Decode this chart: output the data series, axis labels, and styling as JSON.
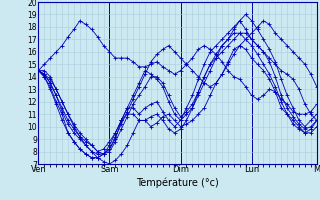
{
  "xlabel": "Température (°c)",
  "background_color": "#cce8f0",
  "grid_color": "#aaccdd",
  "line_color": "#0000bb",
  "marker": "+",
  "ylim": [
    7,
    20
  ],
  "yticks": [
    7,
    8,
    9,
    10,
    11,
    12,
    13,
    14,
    15,
    16,
    17,
    18,
    19,
    20
  ],
  "xtick_labels": [
    "Ven",
    "Sam",
    "Dim",
    "Lun",
    "M"
  ],
  "xtick_positions": [
    0,
    12,
    24,
    36,
    47
  ],
  "n_points": 48,
  "series": [
    [
      14.5,
      14.2,
      13.8,
      13.0,
      12.0,
      11.0,
      10.0,
      9.2,
      8.5,
      8.0,
      7.5,
      7.2,
      7.0,
      7.3,
      7.8,
      8.5,
      9.5,
      10.5,
      10.5,
      10.0,
      10.3,
      10.8,
      11.0,
      10.5,
      10.0,
      10.2,
      10.5,
      11.0,
      11.5,
      12.5,
      13.5,
      14.2,
      15.0,
      15.8,
      16.5,
      16.2,
      15.5,
      15.0,
      14.5,
      13.8,
      12.8,
      11.5,
      11.0,
      10.5,
      10.0,
      9.5,
      9.5,
      10.0
    ],
    [
      14.5,
      14.0,
      13.2,
      12.0,
      11.0,
      9.5,
      8.8,
      8.2,
      7.8,
      7.5,
      7.5,
      7.8,
      8.2,
      9.0,
      10.5,
      11.0,
      11.0,
      10.5,
      10.5,
      10.8,
      11.0,
      10.5,
      9.8,
      9.5,
      9.8,
      10.5,
      11.5,
      12.8,
      14.0,
      15.0,
      15.5,
      16.0,
      16.5,
      17.0,
      17.5,
      17.0,
      16.5,
      15.8,
      15.0,
      14.2,
      13.2,
      12.0,
      11.0,
      10.2,
      9.8,
      9.5,
      9.8,
      10.5
    ],
    [
      14.5,
      14.0,
      13.0,
      11.8,
      10.5,
      9.5,
      8.8,
      8.2,
      7.8,
      7.5,
      7.5,
      7.8,
      8.5,
      9.5,
      10.5,
      11.5,
      11.5,
      11.0,
      11.5,
      11.8,
      12.0,
      11.2,
      10.5,
      10.0,
      10.5,
      11.5,
      12.5,
      13.8,
      15.0,
      16.0,
      16.5,
      17.0,
      17.5,
      18.0,
      18.5,
      17.8,
      17.0,
      16.5,
      16.0,
      15.2,
      14.0,
      12.5,
      11.5,
      10.8,
      10.2,
      9.8,
      10.0,
      10.5
    ],
    [
      14.5,
      14.5,
      14.0,
      13.0,
      12.0,
      11.0,
      10.2,
      9.5,
      9.0,
      8.5,
      8.0,
      8.2,
      8.8,
      9.5,
      10.5,
      11.5,
      12.5,
      13.5,
      14.5,
      14.2,
      13.8,
      13.2,
      12.0,
      11.0,
      10.5,
      11.0,
      11.5,
      12.5,
      13.5,
      14.5,
      15.5,
      16.5,
      17.0,
      17.8,
      18.5,
      19.0,
      18.5,
      17.8,
      17.0,
      16.2,
      15.2,
      13.8,
      12.5,
      11.5,
      10.5,
      10.0,
      10.5,
      11.0
    ],
    [
      14.5,
      15.0,
      15.5,
      16.0,
      16.5,
      17.2,
      17.8,
      18.5,
      18.2,
      17.8,
      17.2,
      16.5,
      16.0,
      15.5,
      15.5,
      15.5,
      15.2,
      14.8,
      14.8,
      15.0,
      15.2,
      14.8,
      14.5,
      14.2,
      14.5,
      15.0,
      15.5,
      16.2,
      16.5,
      16.2,
      15.8,
      15.2,
      14.5,
      14.0,
      13.8,
      13.2,
      12.5,
      12.2,
      12.5,
      13.0,
      12.8,
      12.2,
      11.8,
      11.2,
      11.0,
      11.0,
      11.2,
      11.8
    ],
    [
      14.5,
      14.2,
      13.5,
      12.5,
      11.5,
      10.5,
      9.8,
      9.2,
      8.8,
      8.5,
      8.0,
      7.8,
      8.0,
      8.8,
      9.8,
      10.8,
      11.8,
      12.5,
      13.2,
      14.0,
      14.0,
      13.5,
      12.5,
      11.5,
      10.8,
      11.2,
      11.8,
      12.8,
      14.0,
      15.0,
      15.8,
      16.5,
      17.0,
      17.5,
      17.5,
      17.5,
      17.0,
      16.5,
      16.0,
      15.5,
      15.0,
      14.5,
      14.2,
      13.8,
      13.0,
      11.8,
      11.0,
      10.5
    ],
    [
      14.5,
      14.2,
      13.5,
      12.5,
      11.2,
      10.2,
      9.5,
      9.0,
      8.5,
      8.0,
      7.8,
      7.8,
      8.2,
      9.2,
      10.2,
      11.2,
      12.2,
      13.2,
      14.2,
      15.2,
      15.8,
      16.2,
      16.5,
      16.0,
      15.5,
      15.0,
      14.5,
      14.0,
      13.5,
      13.2,
      13.5,
      14.2,
      15.2,
      16.2,
      16.5,
      17.0,
      17.5,
      18.0,
      18.5,
      18.2,
      17.5,
      17.0,
      16.5,
      16.0,
      15.5,
      15.0,
      14.2,
      13.2
    ]
  ]
}
